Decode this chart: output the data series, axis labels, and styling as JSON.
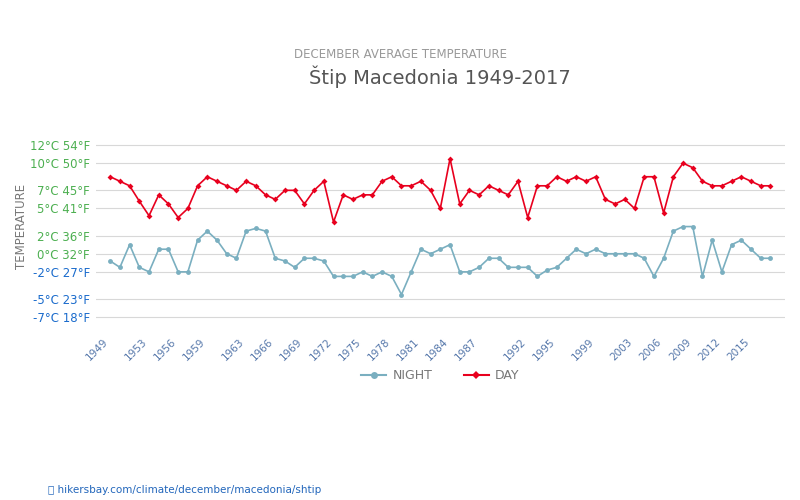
{
  "title": "Štip Macedonia 1949-2017",
  "subtitle": "DECEMBER AVERAGE TEMPERATURE",
  "ylabel": "TEMPERATURE",
  "xlabel_url": "hikersbay.com/climate/december/macedonia/shtip",
  "years": [
    1949,
    1950,
    1951,
    1952,
    1953,
    1954,
    1955,
    1956,
    1957,
    1958,
    1959,
    1960,
    1961,
    1962,
    1963,
    1964,
    1965,
    1966,
    1967,
    1968,
    1969,
    1970,
    1971,
    1972,
    1973,
    1974,
    1975,
    1976,
    1977,
    1978,
    1979,
    1980,
    1981,
    1982,
    1983,
    1984,
    1985,
    1986,
    1987,
    1988,
    1989,
    1990,
    1991,
    1992,
    1993,
    1994,
    1995,
    1996,
    1997,
    1998,
    1999,
    2000,
    2001,
    2002,
    2003,
    2004,
    2005,
    2006,
    2007,
    2008,
    2009,
    2010,
    2011,
    2012,
    2013,
    2014,
    2015,
    2016,
    2017
  ],
  "day_temps": [
    8.5,
    8.0,
    7.5,
    5.8,
    4.2,
    6.5,
    5.5,
    4.0,
    5.0,
    7.5,
    8.5,
    8.0,
    7.5,
    7.0,
    8.0,
    7.5,
    6.5,
    6.0,
    7.0,
    7.0,
    5.5,
    7.0,
    8.0,
    3.5,
    6.5,
    6.0,
    6.5,
    6.5,
    8.0,
    8.5,
    7.5,
    7.5,
    8.0,
    7.0,
    5.0,
    10.5,
    5.5,
    7.0,
    6.5,
    7.5,
    7.0,
    6.5,
    8.0,
    4.0,
    7.5,
    7.5,
    8.5,
    8.0,
    8.5,
    8.0,
    8.5,
    6.0,
    5.5,
    6.0,
    5.0,
    8.5,
    8.5,
    4.5,
    8.5,
    10.0,
    9.5,
    8.0,
    7.5,
    7.5,
    8.0,
    8.5,
    8.0,
    7.5,
    7.5
  ],
  "night_temps": [
    -0.8,
    -1.5,
    1.0,
    -1.5,
    -2.0,
    0.5,
    0.5,
    -2.0,
    -2.0,
    1.5,
    2.5,
    1.5,
    0.0,
    -0.5,
    2.5,
    2.8,
    2.5,
    -0.5,
    -0.8,
    -1.5,
    -0.5,
    -0.5,
    -0.8,
    -2.5,
    -2.5,
    -2.5,
    -2.0,
    -2.5,
    -2.0,
    -2.5,
    -4.5,
    -2.0,
    0.5,
    0.0,
    0.5,
    1.0,
    -2.0,
    -2.0,
    -1.5,
    -0.5,
    -0.5,
    -1.5,
    -1.5,
    -1.5,
    -2.5,
    -1.8,
    -1.5,
    -0.5,
    0.5,
    0.0,
    0.5,
    0.0,
    0.0,
    0.0,
    0.0,
    -0.5,
    -2.5,
    -0.5,
    2.5,
    3.0,
    3.0,
    -2.5,
    1.5,
    -2.0,
    1.0,
    1.5,
    0.5,
    -0.5,
    -0.5
  ],
  "day_color": "#e8001e",
  "night_color": "#7aafc0",
  "background_color": "#ffffff",
  "grid_color": "#d8d8d8",
  "title_color": "#555555",
  "subtitle_color": "#999999",
  "ylabel_color": "#777777",
  "ytick_color_green": "#4caf50",
  "ytick_color_blue": "#1a6bcc",
  "url_color": "#2266bb",
  "xtick_color": "#5577aa",
  "y_celsius": [
    -7,
    -5,
    -2,
    0,
    2,
    5,
    7,
    10,
    12
  ],
  "y_fahrenheit": [
    18,
    23,
    27,
    32,
    36,
    41,
    45,
    50,
    54
  ],
  "ylim": [
    -8.5,
    14.5
  ],
  "xtick_years": [
    1949,
    1953,
    1956,
    1959,
    1963,
    1966,
    1969,
    1972,
    1975,
    1978,
    1981,
    1984,
    1987,
    1992,
    1995,
    1999,
    2003,
    2006,
    2009,
    2012,
    2015
  ]
}
